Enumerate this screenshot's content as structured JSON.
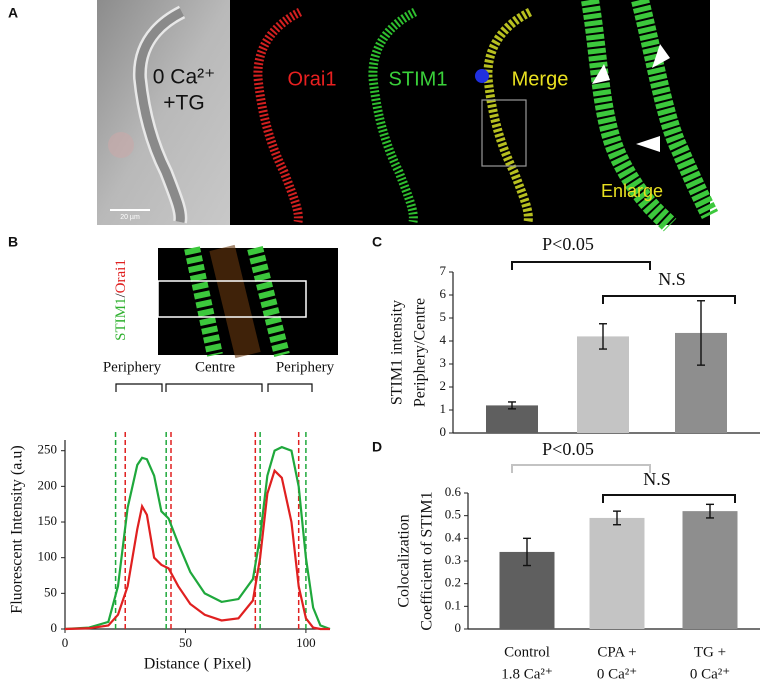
{
  "panels": {
    "A": {
      "letter": "A",
      "condition": [
        "0 Ca²⁺",
        "+TG"
      ],
      "channels": [
        "Orai1",
        "STIM1",
        "Merge"
      ],
      "enlarge": "Enlarge",
      "scale_bar": "20 µm"
    },
    "B": {
      "letter": "B",
      "image_label": [
        "STIM1",
        "/",
        "Orai1"
      ],
      "regions": [
        "Periphery",
        "Centre",
        "Periphery"
      ]
    },
    "C": {
      "letter": "C"
    },
    "D": {
      "letter": "D"
    }
  },
  "chart_data": [
    {
      "type": "line",
      "x": [
        0,
        10,
        18,
        22,
        26,
        30,
        32,
        34,
        37,
        40,
        43,
        47,
        52,
        58,
        65,
        72,
        78,
        81,
        84,
        87,
        90,
        94,
        97,
        100,
        103,
        106,
        110
      ],
      "series": [
        {
          "color": "#1fa83c",
          "values": [
            0,
            2,
            10,
            60,
            170,
            230,
            240,
            238,
            215,
            165,
            155,
            120,
            80,
            50,
            38,
            42,
            70,
            130,
            215,
            250,
            255,
            250,
            200,
            100,
            30,
            5,
            0
          ]
        },
        {
          "color": "#e02020",
          "values": [
            0,
            1,
            5,
            20,
            60,
            140,
            172,
            160,
            100,
            90,
            85,
            60,
            35,
            20,
            12,
            15,
            40,
            100,
            190,
            222,
            212,
            150,
            60,
            15,
            2,
            0,
            0
          ]
        }
      ],
      "vlines": [
        {
          "x": 21,
          "color": "#1fa83c"
        },
        {
          "x": 25,
          "color": "#e02020"
        },
        {
          "x": 42,
          "color": "#1fa83c"
        },
        {
          "x": 44,
          "color": "#e02020"
        },
        {
          "x": 79,
          "color": "#e02020"
        },
        {
          "x": 81,
          "color": "#1fa83c"
        },
        {
          "x": 97,
          "color": "#e02020"
        },
        {
          "x": 100,
          "color": "#1fa83c"
        }
      ],
      "xlim": [
        0,
        110
      ],
      "ylim": [
        0,
        265
      ],
      "xticks": [
        0,
        50,
        100
      ],
      "yticks": [
        0,
        50,
        100,
        150,
        200,
        250
      ],
      "xlabel": "Distance ( Pixel)",
      "ylabel": "Fluorescent Intensity (a.u)"
    },
    {
      "type": "bar",
      "categories": [
        null,
        null,
        null
      ],
      "values": [
        1.2,
        4.2,
        4.35
      ],
      "errors": [
        0.15,
        0.55,
        1.4
      ],
      "colors": [
        "#5f5f5f",
        "#c4c4c4",
        "#8e8e8e"
      ],
      "ylim": [
        0,
        7
      ],
      "yticks": [
        0,
        1,
        2,
        3,
        4,
        5,
        6,
        7
      ],
      "ylabel": [
        "STIM1 intensity",
        "Periphery/Centre"
      ],
      "annotations": [
        "P<0.05",
        "N.S"
      ]
    },
    {
      "type": "bar",
      "categories": [
        [
          "Control",
          "1.8 Ca²⁺"
        ],
        [
          "CPA +",
          "0 Ca²⁺"
        ],
        [
          "TG +",
          "0 Ca²⁺"
        ]
      ],
      "values": [
        0.34,
        0.49,
        0.52
      ],
      "errors": [
        0.06,
        0.03,
        0.03
      ],
      "colors": [
        "#5f5f5f",
        "#c4c4c4",
        "#8e8e8e"
      ],
      "ylim": [
        0,
        0.6
      ],
      "yticks": [
        0,
        0.1,
        0.2,
        0.3,
        0.4,
        0.5,
        0.6
      ],
      "ylabel": [
        "Colocalization",
        "Coefficient of STIM1"
      ],
      "annotations": [
        "P<0.05",
        "N.S"
      ]
    }
  ]
}
